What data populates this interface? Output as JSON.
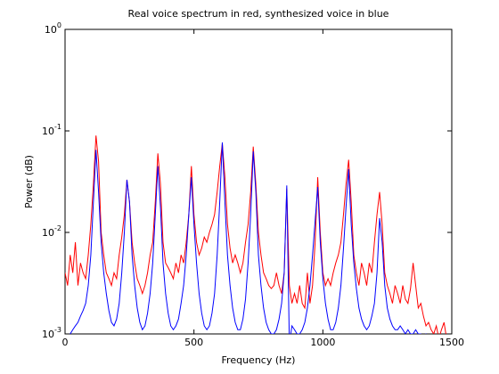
{
  "chart_data": {
    "type": "line",
    "title": "Real voice spectrum in red, synthesized voice in blue",
    "x_label": "Frequency (Hz)",
    "y_label": "Power (dB)",
    "log_y": true,
    "xlim": [
      0,
      1500
    ],
    "xticks": [
      0,
      500,
      1000,
      1500
    ],
    "ylim": [
      0.001,
      1
    ],
    "yticks": [
      {
        "value": 0.001,
        "label": "10^-3"
      },
      {
        "value": 0.01,
        "label": "10^-2"
      },
      {
        "value": 0.1,
        "label": "10^-1"
      },
      {
        "value": 1,
        "label": "10^0"
      }
    ],
    "x": [
      0,
      10,
      20,
      30,
      40,
      50,
      60,
      70,
      80,
      90,
      100,
      110,
      120,
      130,
      140,
      150,
      160,
      170,
      180,
      190,
      200,
      210,
      220,
      230,
      240,
      250,
      260,
      270,
      280,
      290,
      300,
      310,
      320,
      330,
      340,
      350,
      360,
      370,
      380,
      390,
      400,
      410,
      420,
      430,
      440,
      450,
      460,
      470,
      480,
      490,
      500,
      510,
      520,
      530,
      540,
      550,
      560,
      570,
      580,
      590,
      600,
      610,
      620,
      630,
      640,
      650,
      660,
      670,
      680,
      690,
      700,
      710,
      720,
      730,
      740,
      750,
      760,
      770,
      780,
      790,
      800,
      810,
      820,
      830,
      840,
      850,
      860,
      870,
      880,
      890,
      900,
      910,
      920,
      930,
      940,
      950,
      960,
      970,
      980,
      990,
      1000,
      1010,
      1020,
      1030,
      1040,
      1050,
      1060,
      1070,
      1080,
      1090,
      1100,
      1110,
      1120,
      1130,
      1140,
      1150,
      1160,
      1170,
      1180,
      1190,
      1200,
      1210,
      1220,
      1230,
      1240,
      1250,
      1260,
      1270,
      1280,
      1290,
      1300,
      1310,
      1320,
      1330,
      1340,
      1350,
      1360,
      1370,
      1380,
      1390,
      1400,
      1410,
      1420,
      1430,
      1440,
      1450,
      1460,
      1470,
      1480,
      1490
    ],
    "series": [
      {
        "color": "#ff0000",
        "values": [
          0.004,
          0.003,
          0.006,
          0.004,
          0.008,
          0.003,
          0.005,
          0.004,
          0.0035,
          0.006,
          0.012,
          0.03,
          0.09,
          0.05,
          0.01,
          0.006,
          0.004,
          0.0035,
          0.003,
          0.004,
          0.0035,
          0.006,
          0.009,
          0.015,
          0.033,
          0.02,
          0.008,
          0.005,
          0.0035,
          0.003,
          0.0025,
          0.003,
          0.004,
          0.006,
          0.008,
          0.02,
          0.06,
          0.03,
          0.008,
          0.005,
          0.0045,
          0.004,
          0.0035,
          0.005,
          0.004,
          0.006,
          0.005,
          0.008,
          0.015,
          0.045,
          0.015,
          0.008,
          0.006,
          0.007,
          0.009,
          0.008,
          0.01,
          0.012,
          0.015,
          0.025,
          0.045,
          0.075,
          0.035,
          0.012,
          0.007,
          0.005,
          0.006,
          0.005,
          0.004,
          0.005,
          0.008,
          0.012,
          0.025,
          0.07,
          0.03,
          0.01,
          0.006,
          0.004,
          0.0035,
          0.003,
          0.0028,
          0.003,
          0.004,
          0.003,
          0.0025,
          0.004,
          0.027,
          0.003,
          0.002,
          0.0025,
          0.002,
          0.003,
          0.002,
          0.0018,
          0.004,
          0.002,
          0.003,
          0.008,
          0.035,
          0.01,
          0.004,
          0.003,
          0.0035,
          0.003,
          0.004,
          0.005,
          0.006,
          0.008,
          0.015,
          0.03,
          0.052,
          0.02,
          0.006,
          0.004,
          0.003,
          0.005,
          0.004,
          0.003,
          0.005,
          0.004,
          0.008,
          0.015,
          0.025,
          0.012,
          0.004,
          0.003,
          0.0025,
          0.002,
          0.003,
          0.0025,
          0.002,
          0.003,
          0.0022,
          0.002,
          0.0028,
          0.005,
          0.003,
          0.0018,
          0.002,
          0.0015,
          0.0012,
          0.0013,
          0.0011,
          0.001,
          0.0012,
          0.0009,
          0.0011,
          0.0013,
          0.0009,
          0.0008
        ]
      },
      {
        "color": "#0000ff",
        "values": [
          0.0009,
          0.0009,
          0.001,
          0.0011,
          0.0012,
          0.0013,
          0.0015,
          0.0017,
          0.002,
          0.003,
          0.006,
          0.02,
          0.065,
          0.025,
          0.008,
          0.004,
          0.0025,
          0.0017,
          0.0013,
          0.0012,
          0.0014,
          0.002,
          0.004,
          0.01,
          0.033,
          0.02,
          0.006,
          0.003,
          0.0018,
          0.0013,
          0.0011,
          0.0012,
          0.0016,
          0.0025,
          0.005,
          0.015,
          0.045,
          0.018,
          0.005,
          0.0025,
          0.0016,
          0.0012,
          0.0011,
          0.0012,
          0.0014,
          0.002,
          0.003,
          0.006,
          0.015,
          0.035,
          0.012,
          0.005,
          0.0025,
          0.0016,
          0.0012,
          0.0011,
          0.0012,
          0.0016,
          0.0025,
          0.006,
          0.02,
          0.077,
          0.02,
          0.006,
          0.003,
          0.0018,
          0.0013,
          0.0011,
          0.0011,
          0.0014,
          0.0022,
          0.005,
          0.015,
          0.063,
          0.025,
          0.006,
          0.003,
          0.0018,
          0.0013,
          0.0011,
          0.001,
          0.001,
          0.0011,
          0.0014,
          0.002,
          0.004,
          0.029,
          0.0008,
          0.0012,
          0.0011,
          0.001,
          0.001,
          0.0011,
          0.0013,
          0.0018,
          0.003,
          0.006,
          0.013,
          0.028,
          0.008,
          0.0035,
          0.002,
          0.0014,
          0.0011,
          0.0011,
          0.0013,
          0.0018,
          0.003,
          0.007,
          0.018,
          0.042,
          0.012,
          0.005,
          0.0028,
          0.0018,
          0.0014,
          0.0012,
          0.0011,
          0.0012,
          0.0015,
          0.002,
          0.004,
          0.0138,
          0.008,
          0.003,
          0.0018,
          0.0014,
          0.0012,
          0.0011,
          0.0011,
          0.0012,
          0.0011,
          0.001,
          0.0011,
          0.001,
          0.001,
          0.0011,
          0.001,
          0.001,
          0.00095,
          0.001,
          0.0009,
          0.0009,
          0.00095,
          0.0009,
          0.00085,
          0.0009,
          0.00085,
          0.0008,
          0.0008
        ]
      }
    ]
  }
}
